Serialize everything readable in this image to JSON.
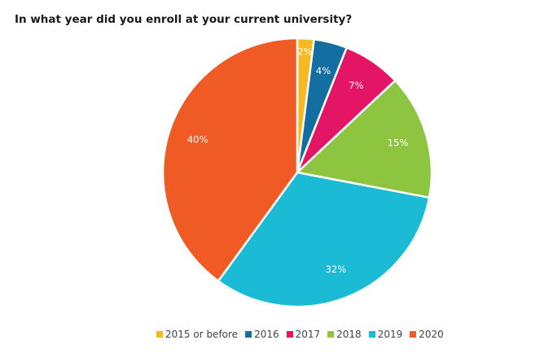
{
  "chart_data": {
    "type": "pie",
    "title": "In what year did you enroll at your current university?",
    "categories": [
      "2015 or before",
      "2016",
      "2017",
      "2018",
      "2019",
      "2020"
    ],
    "values": [
      2,
      4,
      7,
      15,
      32,
      40
    ],
    "labels": [
      "2%",
      "4%",
      "7%",
      "15%",
      "32%",
      "40%"
    ],
    "colors": [
      "#f6b926",
      "#146ea1",
      "#e41565",
      "#8dc540",
      "#1bbbd6",
      "#f05a24"
    ],
    "legend_position": "bottom"
  }
}
